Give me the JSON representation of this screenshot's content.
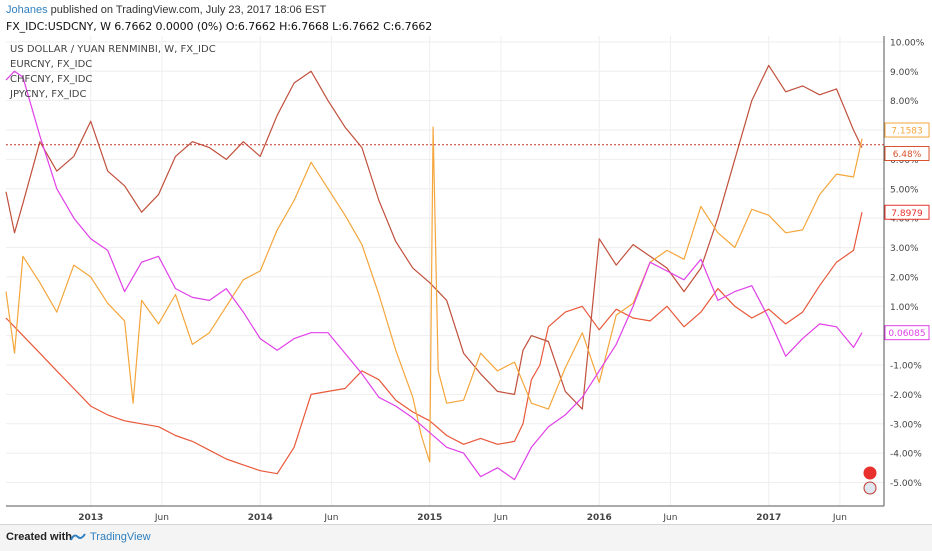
{
  "header": {
    "author": "Johanes",
    "published": "published on TradingView.com, July 23, 2017 18:06 EST",
    "quote": "FX_IDC:USDCNY, W  6.7662 0.0000 (0%) O:6.7662 H:6.7668 L:6.7662 C:6.7662"
  },
  "footer": {
    "created_with": "Created with",
    "brand": "TradingView"
  },
  "colors": {
    "USDCNY": "#e8583a",
    "EURCNY": "#c0503c",
    "CHFCNY": "#f4a63c",
    "JPYCNY": "#e040e8",
    "lastline": "#c0392b",
    "grid": "#eeeeee",
    "axis": "#555555"
  },
  "chart_data": {
    "type": "line",
    "legend": [
      "US DOLLAR / YUAN RENMINBI, W, FX_IDC",
      "EURCNY, FX_IDC",
      "CHFCNY, FX_IDC",
      "JPYCNY, FX_IDC"
    ],
    "x_ticks": [
      {
        "label": "2013",
        "t": 2013.0
      },
      {
        "label": "Jun",
        "t": 2013.42
      },
      {
        "label": "2014",
        "t": 2014.0
      },
      {
        "label": "Jun",
        "t": 2014.42
      },
      {
        "label": "2015",
        "t": 2015.0
      },
      {
        "label": "Jun",
        "t": 2015.42
      },
      {
        "label": "2016",
        "t": 2016.0
      },
      {
        "label": "Jun",
        "t": 2016.42
      },
      {
        "label": "2017",
        "t": 2017.0
      },
      {
        "label": "Jun",
        "t": 2017.42
      }
    ],
    "x_range": [
      2012.5,
      2017.68
    ],
    "y_ticks": [
      10,
      9,
      8,
      7,
      6,
      5,
      4,
      3,
      2,
      1,
      0,
      -1,
      -2,
      -3,
      -4,
      -5
    ],
    "y_tick_labels": [
      "10.00%",
      "9.00%",
      "8.00%",
      "7.00%",
      "6.00%",
      "5.00%",
      "4.00%",
      "3.00%",
      "2.00%",
      "1.00%",
      "0.00%",
      "-1.00%",
      "-2.00%",
      "-3.00%",
      "-4.00%",
      "-5.00%"
    ],
    "ylim": [
      -5.8,
      10.2
    ],
    "price_line_y": 6.5,
    "price_labels": [
      {
        "text": "7.1583",
        "y": 7.0,
        "color": "#f4a63c"
      },
      {
        "text": "6.48%",
        "y": 6.2,
        "color": "#d9532c"
      },
      {
        "text": "7.8979",
        "y": 4.2,
        "color": "#e8302c"
      },
      {
        "text": "0.06085",
        "y": 0.1,
        "color": "#e040e8"
      }
    ],
    "series": [
      {
        "name": "US DOLLAR / YUAN RENMINBI, W, FX_IDC",
        "key": "USDCNY",
        "x": [
          2012.5,
          2012.55,
          2012.6,
          2012.7,
          2012.8,
          2012.9,
          2013.0,
          2013.1,
          2013.2,
          2013.3,
          2013.4,
          2013.5,
          2013.6,
          2013.7,
          2013.8,
          2013.9,
          2014.0,
          2014.1,
          2014.2,
          2014.3,
          2014.4,
          2014.5,
          2014.6,
          2014.7,
          2014.8,
          2014.9,
          2015.0,
          2015.1,
          2015.2,
          2015.3,
          2015.4,
          2015.5,
          2015.55,
          2015.6,
          2015.65,
          2015.7,
          2015.8,
          2015.9,
          2016.0,
          2016.1,
          2016.2,
          2016.3,
          2016.4,
          2016.5,
          2016.6,
          2016.7,
          2016.8,
          2016.9,
          2017.0,
          2017.1,
          2017.2,
          2017.3,
          2017.4,
          2017.5,
          2017.55
        ],
        "y": [
          0.6,
          0.3,
          0.0,
          -0.6,
          -1.2,
          -1.8,
          -2.4,
          -2.7,
          -2.9,
          -3.0,
          -3.1,
          -3.4,
          -3.6,
          -3.9,
          -4.2,
          -4.4,
          -4.6,
          -4.7,
          -3.8,
          -2.0,
          -1.9,
          -1.8,
          -1.2,
          -1.5,
          -2.2,
          -2.6,
          -2.9,
          -3.4,
          -3.7,
          -3.5,
          -3.7,
          -3.6,
          -3.0,
          -1.5,
          -1.0,
          0.3,
          0.8,
          1.0,
          0.2,
          0.9,
          0.6,
          0.5,
          1.0,
          0.3,
          0.8,
          1.6,
          1.0,
          0.6,
          0.9,
          0.4,
          0.8,
          1.7,
          2.5,
          2.9,
          4.2
        ]
      },
      {
        "name": "EURCNY, FX_IDC",
        "key": "EURCNY",
        "x": [
          2012.5,
          2012.55,
          2012.6,
          2012.7,
          2012.8,
          2012.9,
          2013.0,
          2013.1,
          2013.2,
          2013.3,
          2013.4,
          2013.5,
          2013.6,
          2013.7,
          2013.8,
          2013.9,
          2014.0,
          2014.1,
          2014.2,
          2014.3,
          2014.4,
          2014.5,
          2014.6,
          2014.7,
          2014.8,
          2014.9,
          2015.0,
          2015.1,
          2015.2,
          2015.3,
          2015.4,
          2015.5,
          2015.55,
          2015.6,
          2015.7,
          2015.8,
          2015.9,
          2016.0,
          2016.1,
          2016.2,
          2016.3,
          2016.4,
          2016.5,
          2016.6,
          2016.7,
          2016.8,
          2016.9,
          2017.0,
          2017.1,
          2017.2,
          2017.3,
          2017.4,
          2017.5,
          2017.55
        ],
        "y": [
          4.9,
          3.5,
          4.5,
          6.6,
          5.6,
          6.1,
          7.3,
          5.6,
          5.1,
          4.2,
          4.8,
          6.1,
          6.6,
          6.4,
          6.0,
          6.6,
          6.1,
          7.5,
          8.6,
          9.0,
          8.0,
          7.1,
          6.4,
          4.6,
          3.2,
          2.3,
          1.8,
          1.2,
          -0.6,
          -1.3,
          -1.9,
          -2.0,
          -0.5,
          0.0,
          -0.2,
          -1.9,
          -2.5,
          3.3,
          2.4,
          3.1,
          2.7,
          2.3,
          1.5,
          2.3,
          4.0,
          6.0,
          8.0,
          9.2,
          8.3,
          8.5,
          8.2,
          8.4,
          7.0,
          6.4
        ]
      },
      {
        "name": "CHFCNY, FX_IDC",
        "key": "CHFCNY",
        "x": [
          2012.5,
          2012.55,
          2012.6,
          2012.7,
          2012.8,
          2012.9,
          2013.0,
          2013.1,
          2013.2,
          2013.25,
          2013.3,
          2013.4,
          2013.5,
          2013.6,
          2013.7,
          2013.8,
          2013.9,
          2014.0,
          2014.1,
          2014.2,
          2014.3,
          2014.4,
          2014.5,
          2014.6,
          2014.7,
          2014.8,
          2014.9,
          2014.95,
          2015.0,
          2015.02,
          2015.05,
          2015.1,
          2015.2,
          2015.3,
          2015.4,
          2015.5,
          2015.6,
          2015.7,
          2015.8,
          2015.9,
          2016.0,
          2016.1,
          2016.2,
          2016.3,
          2016.4,
          2016.5,
          2016.6,
          2016.7,
          2016.8,
          2016.9,
          2017.0,
          2017.1,
          2017.2,
          2017.3,
          2017.4,
          2017.5,
          2017.55
        ],
        "y": [
          1.5,
          -0.6,
          2.7,
          1.8,
          0.8,
          2.4,
          2.0,
          1.1,
          0.5,
          -2.3,
          1.2,
          0.4,
          1.4,
          -0.3,
          0.1,
          1.0,
          1.9,
          2.2,
          3.6,
          4.6,
          5.9,
          5.0,
          4.1,
          3.1,
          1.4,
          -0.5,
          -2.1,
          -3.4,
          -4.3,
          7.1,
          -1.2,
          -2.3,
          -2.2,
          -0.6,
          -1.2,
          -0.9,
          -2.3,
          -2.5,
          -1.1,
          0.1,
          -1.6,
          0.7,
          1.1,
          2.5,
          2.9,
          2.6,
          4.4,
          3.5,
          3.0,
          4.3,
          4.1,
          3.5,
          3.6,
          4.8,
          5.5,
          5.4,
          6.7
        ]
      },
      {
        "name": "JPYCNY, FX_IDC",
        "key": "JPYCNY",
        "x": [
          2012.5,
          2012.55,
          2012.6,
          2012.7,
          2012.8,
          2012.9,
          2013.0,
          2013.1,
          2013.2,
          2013.3,
          2013.4,
          2013.5,
          2013.6,
          2013.7,
          2013.8,
          2013.9,
          2014.0,
          2014.1,
          2014.2,
          2014.3,
          2014.4,
          2014.5,
          2014.6,
          2014.7,
          2014.8,
          2014.9,
          2015.0,
          2015.1,
          2015.2,
          2015.3,
          2015.4,
          2015.5,
          2015.6,
          2015.7,
          2015.8,
          2015.9,
          2016.0,
          2016.1,
          2016.2,
          2016.3,
          2016.4,
          2016.5,
          2016.6,
          2016.7,
          2016.8,
          2016.9,
          2017.0,
          2017.1,
          2017.2,
          2017.3,
          2017.4,
          2017.5,
          2017.55
        ],
        "y": [
          8.7,
          9.0,
          8.8,
          6.8,
          5.0,
          4.0,
          3.3,
          2.9,
          1.5,
          2.5,
          2.7,
          1.6,
          1.3,
          1.2,
          1.6,
          0.8,
          -0.1,
          -0.5,
          -0.1,
          0.1,
          0.1,
          -0.6,
          -1.3,
          -2.1,
          -2.4,
          -2.8,
          -3.3,
          -3.8,
          -4.0,
          -4.8,
          -4.5,
          -4.9,
          -3.8,
          -3.1,
          -2.7,
          -2.1,
          -1.2,
          -0.3,
          1.0,
          2.5,
          2.2,
          1.9,
          2.6,
          1.2,
          1.5,
          1.7,
          0.6,
          -0.7,
          -0.1,
          0.4,
          0.3,
          -0.4,
          0.1
        ]
      }
    ]
  }
}
